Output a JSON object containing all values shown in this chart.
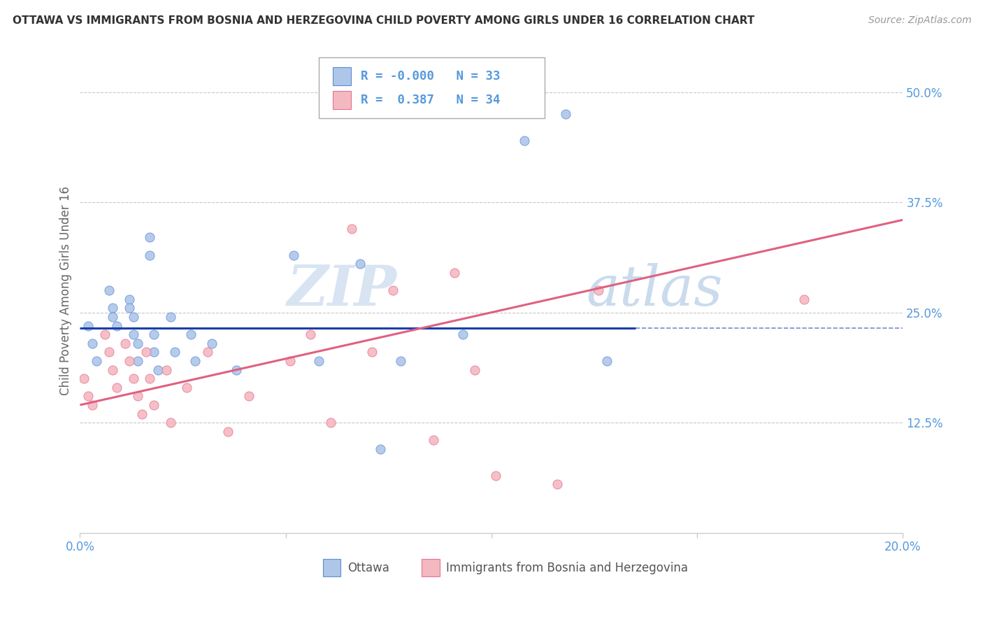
{
  "title": "OTTAWA VS IMMIGRANTS FROM BOSNIA AND HERZEGOVINA CHILD POVERTY AMONG GIRLS UNDER 16 CORRELATION CHART",
  "source": "Source: ZipAtlas.com",
  "ylabel": "Child Poverty Among Girls Under 16",
  "xlim": [
    0.0,
    0.2
  ],
  "ylim": [
    0.0,
    0.55
  ],
  "yticks": [
    0.125,
    0.25,
    0.375,
    0.5
  ],
  "ytick_labels": [
    "12.5%",
    "25.0%",
    "37.5%",
    "50.0%"
  ],
  "xticks": [
    0.0,
    0.05,
    0.1,
    0.15,
    0.2
  ],
  "xtick_labels": [
    "0.0%",
    "",
    "",
    "",
    "20.0%"
  ],
  "watermark_part1": "ZIP",
  "watermark_part2": "atlas",
  "legend_R1": "-0.000",
  "legend_N1": "33",
  "legend_R2": "0.387",
  "legend_N2": "34",
  "blue_scatter_color": "#aec6e8",
  "pink_scatter_color": "#f4b8c1",
  "blue_edge_color": "#5b8dd9",
  "pink_edge_color": "#e87090",
  "line_blue_color": "#1a3faa",
  "line_pink_color": "#e06080",
  "ottawa_scatter_x": [
    0.002,
    0.003,
    0.004,
    0.007,
    0.008,
    0.008,
    0.009,
    0.012,
    0.012,
    0.013,
    0.013,
    0.014,
    0.014,
    0.017,
    0.017,
    0.018,
    0.018,
    0.019,
    0.022,
    0.023,
    0.027,
    0.028,
    0.032,
    0.038,
    0.052,
    0.058,
    0.068,
    0.073,
    0.078,
    0.093,
    0.108,
    0.118,
    0.128
  ],
  "ottawa_scatter_y": [
    0.235,
    0.215,
    0.195,
    0.275,
    0.255,
    0.245,
    0.235,
    0.265,
    0.255,
    0.245,
    0.225,
    0.215,
    0.195,
    0.335,
    0.315,
    0.225,
    0.205,
    0.185,
    0.245,
    0.205,
    0.225,
    0.195,
    0.215,
    0.185,
    0.315,
    0.195,
    0.305,
    0.095,
    0.195,
    0.225,
    0.445,
    0.475,
    0.195
  ],
  "bosnia_scatter_x": [
    0.001,
    0.002,
    0.003,
    0.006,
    0.007,
    0.008,
    0.009,
    0.011,
    0.012,
    0.013,
    0.014,
    0.015,
    0.016,
    0.017,
    0.018,
    0.021,
    0.022,
    0.026,
    0.031,
    0.036,
    0.041,
    0.051,
    0.056,
    0.061,
    0.066,
    0.071,
    0.076,
    0.086,
    0.091,
    0.096,
    0.101,
    0.116,
    0.126,
    0.176
  ],
  "bosnia_scatter_y": [
    0.175,
    0.155,
    0.145,
    0.225,
    0.205,
    0.185,
    0.165,
    0.215,
    0.195,
    0.175,
    0.155,
    0.135,
    0.205,
    0.175,
    0.145,
    0.185,
    0.125,
    0.165,
    0.205,
    0.115,
    0.155,
    0.195,
    0.225,
    0.125,
    0.345,
    0.205,
    0.275,
    0.105,
    0.295,
    0.185,
    0.065,
    0.055,
    0.275,
    0.265
  ],
  "blue_line_x": [
    0.0,
    0.135
  ],
  "blue_line_y": [
    0.232,
    0.232
  ],
  "pink_line_x": [
    0.0,
    0.2
  ],
  "pink_line_y": [
    0.145,
    0.355
  ],
  "grid_color": "#c8c8c8",
  "background_color": "#ffffff",
  "tick_color": "#5599dd",
  "ylabel_color": "#666666",
  "title_color": "#333333"
}
